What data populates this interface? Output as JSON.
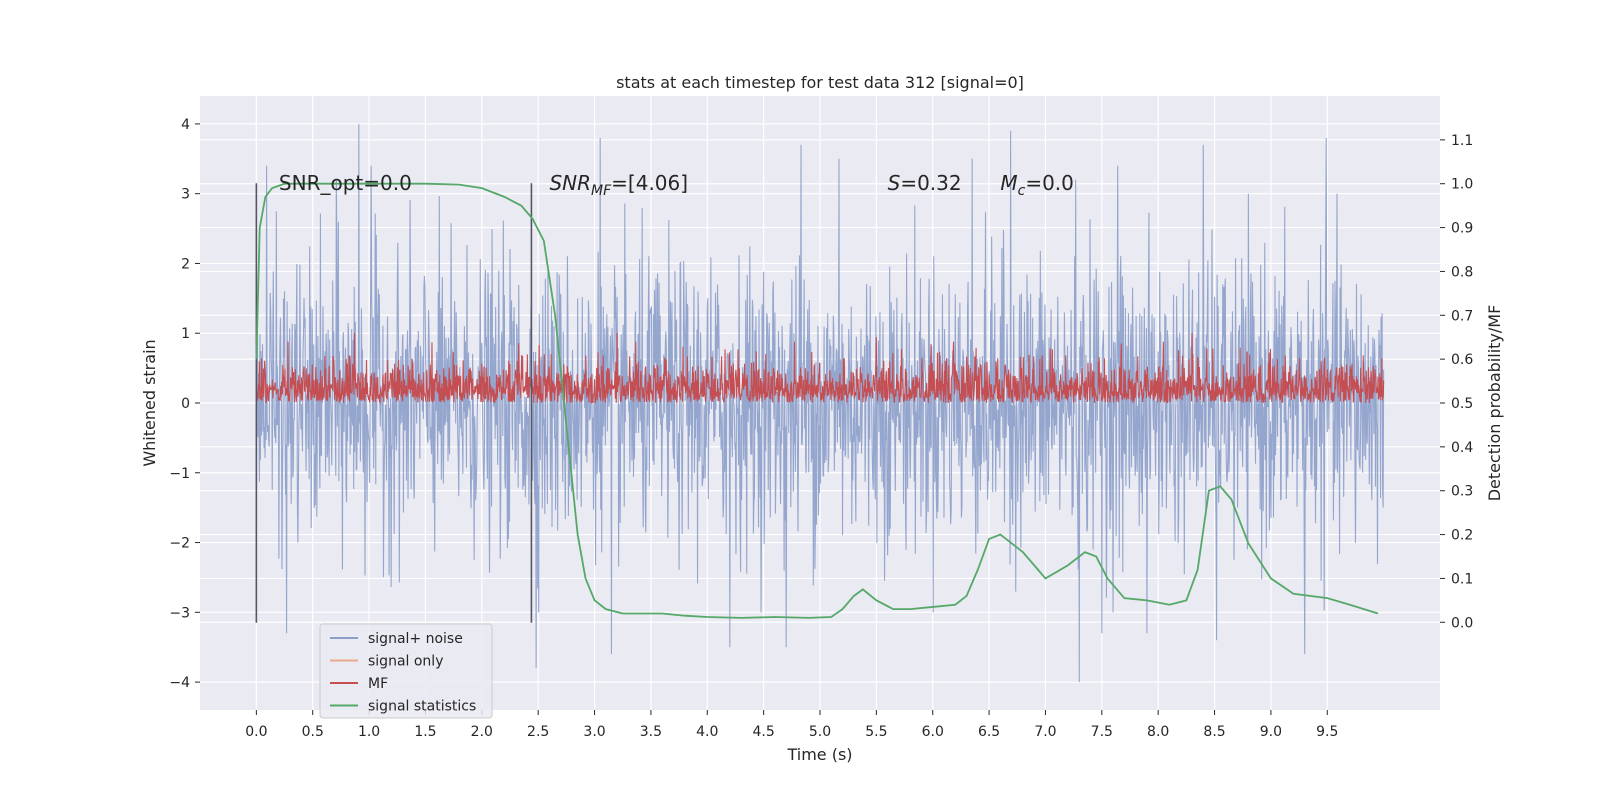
{
  "chart_data": {
    "type": "line",
    "title": "stats at each timestep for test data 312 [signal=0]",
    "xlabel": "Time (s)",
    "ylabel_left": "Whitened strain",
    "ylabel_right": "Detection probability/MF",
    "xlim": [
      -0.5,
      10.5
    ],
    "ylim_left": [
      -4.4,
      4.4
    ],
    "ylim_right": [
      -0.2,
      1.2
    ],
    "x_ticks": [
      0.0,
      0.5,
      1.0,
      1.5,
      2.0,
      2.5,
      3.0,
      3.5,
      4.0,
      4.5,
      5.0,
      5.5,
      6.0,
      6.5,
      7.0,
      7.5,
      8.0,
      8.5,
      9.0,
      9.5
    ],
    "x_tick_labels": [
      "0.0",
      "0.5",
      "1.0",
      "1.5",
      "2.0",
      "2.5",
      "3.0",
      "3.5",
      "4.0",
      "4.5",
      "5.0",
      "5.5",
      "6.0",
      "6.5",
      "7.0",
      "7.5",
      "8.0",
      "8.5",
      "9.0",
      "9.5"
    ],
    "y_left_ticks": [
      -4,
      -3,
      -2,
      -1,
      0,
      1,
      2,
      3,
      4
    ],
    "y_left_tick_labels": [
      "−4",
      "−3",
      "−2",
      "−1",
      "0",
      "1",
      "2",
      "3",
      "4"
    ],
    "y_right_ticks": [
      0.0,
      0.1,
      0.2,
      0.3,
      0.4,
      0.5,
      0.6,
      0.7,
      0.8,
      0.9,
      1.0,
      1.1
    ],
    "y_right_tick_labels": [
      "0.0",
      "0.1",
      "0.2",
      "0.3",
      "0.4",
      "0.5",
      "0.6",
      "0.7",
      "0.8",
      "0.9",
      "1.0",
      "1.1"
    ],
    "grid": true,
    "background": "#eaeaf2",
    "annotations": [
      {
        "text": "SNR_opt=0.0",
        "x": 0.2,
        "y": 3.15
      },
      {
        "text": "SNR_MF=[4.06]",
        "x": 2.6,
        "y": 3.15
      },
      {
        "text": "S=0.32",
        "x": 5.6,
        "y": 3.15
      },
      {
        "text": "M_c=0.0",
        "x": 6.6,
        "y": 3.15
      }
    ],
    "vlines": [
      {
        "x": 0.0,
        "ymin": -3.15,
        "ymax": 3.15
      },
      {
        "x": 2.44,
        "ymin": -3.15,
        "ymax": 3.15
      }
    ],
    "legend": {
      "placement": "lower-left",
      "entries": [
        {
          "label": "signal+ noise",
          "color": "#8c9fca"
        },
        {
          "label": "signal only",
          "color": "#e8a98d"
        },
        {
          "label": "MF",
          "color": "#c44e52"
        },
        {
          "label": "signal statistics",
          "color": "#55a868"
        }
      ]
    },
    "series": [
      {
        "name": "signal+ noise",
        "color": "#8c9fca",
        "axis": "left",
        "style": "dense-noise",
        "x_range": [
          0.0,
          10.0
        ],
        "typical_band": [
          -2.0,
          2.0
        ],
        "peaks_high": [
          [
            0.09,
            3.4
          ],
          [
            0.71,
            3.2
          ],
          [
            0.91,
            4.0
          ],
          [
            1.02,
            3.4
          ],
          [
            3.05,
            3.8
          ],
          [
            4.83,
            3.7
          ],
          [
            5.17,
            3.5
          ],
          [
            6.35,
            3.5
          ],
          [
            6.69,
            3.9
          ],
          [
            7.27,
            3.2
          ],
          [
            7.64,
            3.4
          ],
          [
            8.4,
            3.7
          ],
          [
            9.49,
            3.8
          ]
        ],
        "peaks_low": [
          [
            0.27,
            -3.3
          ],
          [
            2.48,
            -3.8
          ],
          [
            3.15,
            -3.6
          ],
          [
            4.2,
            -3.5
          ],
          [
            4.7,
            -3.5
          ],
          [
            7.3,
            -4.0
          ],
          [
            7.5,
            -3.3
          ],
          [
            7.9,
            -3.3
          ],
          [
            8.52,
            -3.4
          ],
          [
            9.3,
            -3.6
          ]
        ]
      },
      {
        "name": "MF",
        "color": "#c44e52",
        "axis": "right",
        "style": "dense-noise",
        "x_range": [
          0.0,
          10.0
        ],
        "typical_band": [
          0.5,
          0.58
        ],
        "peaks_high": [
          [
            0.87,
            0.66
          ],
          [
            3.2,
            0.66
          ],
          [
            5.5,
            0.65
          ],
          [
            8.3,
            0.66
          ]
        ]
      },
      {
        "name": "signal statistics",
        "color": "#55a868",
        "axis": "right",
        "x": [
          0.0,
          0.03,
          0.08,
          0.14,
          0.25,
          0.5,
          1.0,
          1.5,
          1.8,
          2.0,
          2.2,
          2.35,
          2.45,
          2.55,
          2.65,
          2.75,
          2.85,
          2.92,
          3.0,
          3.1,
          3.25,
          3.4,
          3.6,
          3.8,
          4.0,
          4.3,
          4.6,
          4.9,
          5.1,
          5.2,
          5.3,
          5.38,
          5.5,
          5.65,
          5.8,
          6.0,
          6.2,
          6.3,
          6.4,
          6.5,
          6.6,
          6.7,
          6.8,
          6.9,
          7.0,
          7.2,
          7.35,
          7.45,
          7.55,
          7.7,
          7.9,
          8.1,
          8.25,
          8.35,
          8.45,
          8.55,
          8.65,
          8.8,
          9.0,
          9.2,
          9.5,
          9.7,
          9.95
        ],
        "y": [
          0.6,
          0.9,
          0.97,
          0.99,
          1.0,
          1.0,
          1.0,
          1.0,
          0.998,
          0.99,
          0.97,
          0.95,
          0.92,
          0.87,
          0.7,
          0.45,
          0.2,
          0.1,
          0.05,
          0.03,
          0.02,
          0.02,
          0.02,
          0.015,
          0.012,
          0.01,
          0.012,
          0.01,
          0.012,
          0.03,
          0.06,
          0.075,
          0.05,
          0.03,
          0.03,
          0.035,
          0.04,
          0.06,
          0.12,
          0.19,
          0.2,
          0.18,
          0.16,
          0.13,
          0.1,
          0.13,
          0.16,
          0.15,
          0.1,
          0.055,
          0.05,
          0.04,
          0.05,
          0.12,
          0.3,
          0.31,
          0.28,
          0.18,
          0.1,
          0.065,
          0.055,
          0.04,
          0.02
        ]
      }
    ]
  }
}
